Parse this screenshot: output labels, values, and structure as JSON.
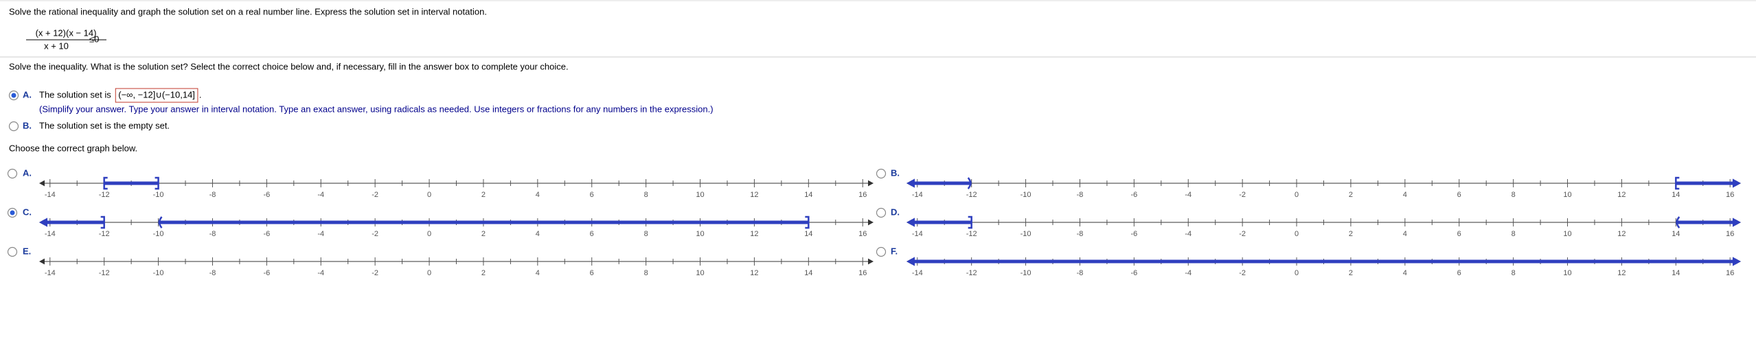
{
  "question": "Solve the rational inequality and graph the solution set on a real number line.  Express the solution set in interval notation.",
  "inequality": {
    "numerator": "(x + 12)(x − 14)",
    "denominator": "x + 10",
    "relation": "≤0"
  },
  "prompt": "Solve the inequality. What is the solution set? Select the correct choice below and, if necessary, fill in the answer box to complete your choice.",
  "choices": [
    {
      "letter": "A.",
      "text": "The solution set is",
      "answer": "(−∞, −12]∪(−10,14]",
      "answer_suffix": ".",
      "selected": true,
      "hint": "(Simplify your answer. Type your answer in interval notation. Type an exact answer, using radicals as needed. Use integers or fractions for any numbers in the expression.)"
    },
    {
      "letter": "B.",
      "text": "The solution set is the empty set.",
      "selected": false
    }
  ],
  "graph_prompt": "Choose the correct graph below.",
  "number_line": {
    "xlim": [
      -14.4,
      16.4
    ],
    "ticks": [
      -14,
      -12,
      -10,
      -8,
      -6,
      -4,
      -2,
      0,
      2,
      4,
      6,
      8,
      10,
      12,
      14,
      16
    ],
    "minor_ticks": [
      -13,
      -11,
      -9,
      -7,
      -5,
      -3,
      -1,
      1,
      3,
      5,
      7,
      9,
      11,
      13,
      15
    ]
  },
  "graphs": [
    {
      "letter": "A.",
      "selected": false,
      "segments": [
        {
          "from": -12,
          "to": -10,
          "from_closed": true,
          "to_closed": true
        }
      ]
    },
    {
      "letter": "B.",
      "selected": false,
      "segments": [
        {
          "from": null,
          "to": -12,
          "to_closed": false
        },
        {
          "from": 14,
          "to": null,
          "from_closed": true
        }
      ]
    },
    {
      "letter": "C.",
      "selected": true,
      "segments": [
        {
          "from": null,
          "to": -12,
          "to_closed": true
        },
        {
          "from": -10,
          "to": 14,
          "from_closed": false,
          "to_closed": true
        }
      ]
    },
    {
      "letter": "D.",
      "selected": false,
      "segments": [
        {
          "from": null,
          "to": -12,
          "to_closed": true
        },
        {
          "from": 14,
          "to": null,
          "from_closed": false
        }
      ]
    },
    {
      "letter": "E.",
      "selected": false,
      "segments": []
    },
    {
      "letter": "F.",
      "selected": false,
      "segments": [
        {
          "from": null,
          "to": null
        }
      ]
    }
  ]
}
